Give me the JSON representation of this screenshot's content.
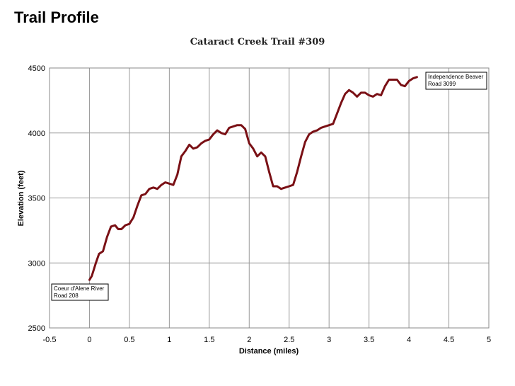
{
  "page_heading": "Trail Profile",
  "chart_data": {
    "type": "line",
    "title": "Cataract Creek Trail #309",
    "xlabel": "Distance (miles)",
    "ylabel": "Elevation (feet)",
    "xlim": [
      -0.5,
      5
    ],
    "ylim": [
      2500,
      4500
    ],
    "x_ticks": [
      "-0.5",
      "0",
      "0.5",
      "1",
      "1.5",
      "2",
      "2.5",
      "3",
      "3.5",
      "4",
      "4.5",
      "5"
    ],
    "y_ticks": [
      "2500",
      "3000",
      "3500",
      "4000",
      "4500"
    ],
    "grid": true,
    "line_color": "#7a1015",
    "series": [
      {
        "x": [
          0,
          0.03,
          0.08,
          0.12,
          0.17,
          0.22,
          0.27,
          0.32,
          0.36,
          0.4,
          0.45,
          0.5,
          0.55,
          0.6,
          0.65,
          0.7,
          0.75,
          0.8,
          0.85,
          0.9,
          0.95,
          1.0,
          1.05,
          1.1,
          1.15,
          1.2,
          1.25,
          1.3,
          1.35,
          1.4,
          1.45,
          1.5,
          1.55,
          1.6,
          1.65,
          1.7,
          1.75,
          1.8,
          1.85,
          1.9,
          1.95,
          2.0,
          2.05,
          2.1,
          2.15,
          2.2,
          2.25,
          2.3,
          2.35,
          2.4,
          2.45,
          2.5,
          2.55,
          2.6,
          2.65,
          2.7,
          2.75,
          2.8,
          2.85,
          2.9,
          2.95,
          3.0,
          3.05,
          3.1,
          3.15,
          3.2,
          3.25,
          3.3,
          3.35,
          3.4,
          3.45,
          3.5,
          3.55,
          3.6,
          3.65,
          3.7,
          3.75,
          3.8,
          3.85,
          3.9,
          3.95,
          4.0,
          4.05,
          4.1
        ],
        "y": [
          2870,
          2900,
          3000,
          3070,
          3090,
          3200,
          3280,
          3290,
          3260,
          3260,
          3290,
          3300,
          3350,
          3440,
          3520,
          3530,
          3570,
          3580,
          3570,
          3600,
          3620,
          3610,
          3600,
          3680,
          3820,
          3860,
          3910,
          3880,
          3890,
          3920,
          3940,
          3950,
          3990,
          4020,
          4000,
          3990,
          4040,
          4050,
          4060,
          4060,
          4030,
          3920,
          3880,
          3820,
          3850,
          3820,
          3700,
          3590,
          3590,
          3570,
          3580,
          3590,
          3600,
          3700,
          3820,
          3930,
          3990,
          4010,
          4020,
          4040,
          4050,
          4060,
          4070,
          4150,
          4230,
          4300,
          4330,
          4310,
          4280,
          4310,
          4310,
          4290,
          4280,
          4300,
          4290,
          4360,
          4410,
          4410,
          4410,
          4370,
          4360,
          4400,
          4420,
          4430
        ]
      }
    ],
    "annotations": [
      {
        "lines": [
          "Coeur d'Alene River",
          "Road 208"
        ],
        "anchor": "start"
      },
      {
        "lines": [
          "Independence Beaver",
          "Road 3099"
        ],
        "anchor": "end"
      }
    ]
  }
}
